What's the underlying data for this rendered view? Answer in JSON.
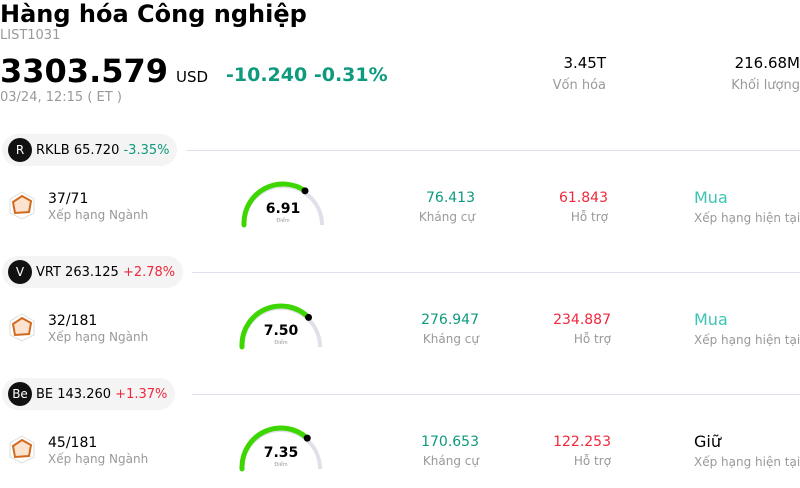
{
  "header": {
    "title": "Hàng hóa Công nghiệp",
    "code": "LIST1031",
    "price": "3303.579",
    "currency": "USD",
    "change": "-10.240",
    "change_pct": "-0.31%",
    "time": "03/24, 12:15  ( ET )",
    "market_cap": "3.45T",
    "market_cap_label": "Vốn hóa",
    "volume": "216.68M",
    "volume_label": "Khối lượng"
  },
  "colors": {
    "down": "#0e9a7e",
    "up": "#f0283c",
    "gauge": "#3ed600",
    "buy": "#3cc4b4"
  },
  "stocks": [
    {
      "ticker_line": "RKLB 65.720",
      "pct": "-3.35%",
      "dir": "down",
      "logo": "R",
      "rank": "37/71",
      "rank_label": "Xếp hạng Ngành",
      "score": "6.91",
      "score_value": 6.91,
      "score_label": "Điểm",
      "resistance": "76.413",
      "resistance_label": "Kháng cự",
      "support": "61.843",
      "support_label": "Hỗ trợ",
      "rating": "Mua",
      "rating_label": "Xếp hạng hiện tại"
    },
    {
      "ticker_line": "VRT 263.125",
      "pct": "+2.78%",
      "dir": "up",
      "logo": "V",
      "rank": "32/181",
      "rank_label": "Xếp hạng Ngành",
      "score": "7.50",
      "score_value": 7.5,
      "score_label": "Điểm",
      "resistance": "276.947",
      "resistance_label": "Kháng cự",
      "support": "234.887",
      "support_label": "Hỗ trợ",
      "rating": "Mua",
      "rating_label": "Xếp hạng hiện tại"
    },
    {
      "ticker_line": "BE 143.260",
      "pct": "+1.37%",
      "dir": "up",
      "logo": "Be",
      "rank": "45/181",
      "rank_label": "Xếp hạng Ngành",
      "score": "7.35",
      "score_value": 7.35,
      "score_label": "Điểm",
      "resistance": "170.653",
      "resistance_label": "Kháng cự",
      "support": "122.253",
      "support_label": "Hỗ trợ",
      "rating": "Giữ",
      "rating_label": "Xếp hạng hiện tại"
    }
  ]
}
